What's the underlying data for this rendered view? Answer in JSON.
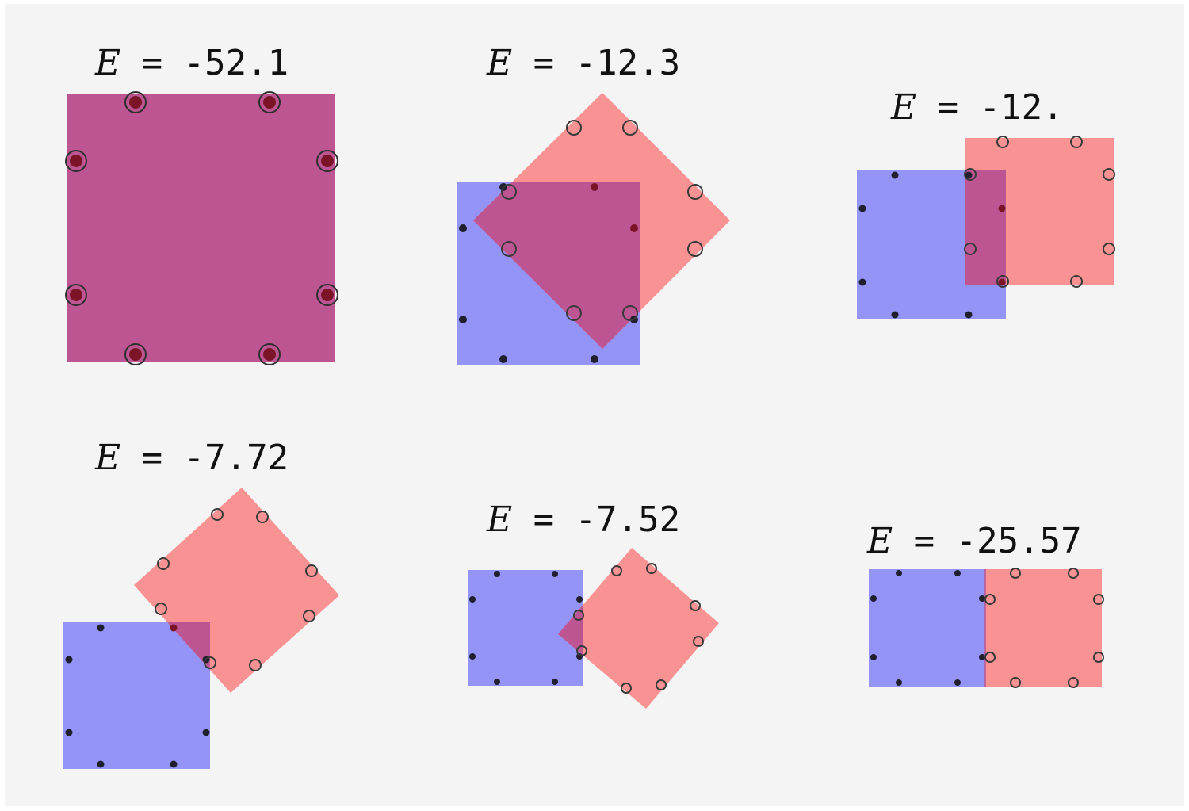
{
  "colors": {
    "background": "#f4f4f4",
    "blue_square": "#9494f7",
    "red_square": "#f99393",
    "overlap": "#bc5591",
    "filled_dot": "#1f1f2e",
    "filled_dot_in_overlap": "#7a1426",
    "ring": "#3a3a3a"
  },
  "panels": [
    {
      "symbol": "E",
      "equals": "=",
      "value": "-52.1"
    },
    {
      "symbol": "E",
      "equals": "=",
      "value": "-12.3"
    },
    {
      "symbol": "E",
      "equals": "=",
      "value": "-12."
    },
    {
      "symbol": "E",
      "equals": "=",
      "value": "-7.72"
    },
    {
      "symbol": "E",
      "equals": "=",
      "value": "-7.52"
    },
    {
      "symbol": "E",
      "equals": "=",
      "value": "-25.57"
    }
  ]
}
